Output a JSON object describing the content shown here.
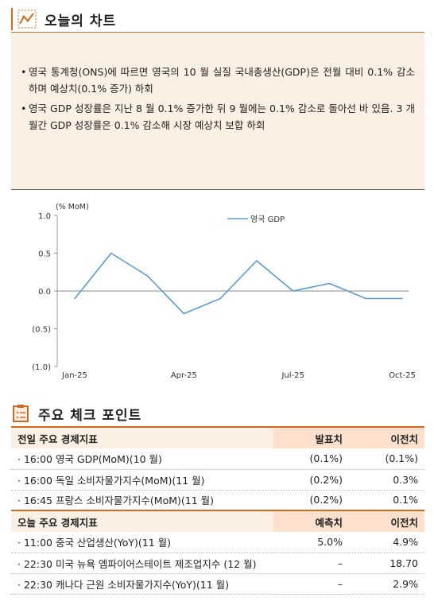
{
  "section1": {
    "title": "오늘의 차트",
    "bullets": [
      "영국 통계청(ONS)에 따르면 영국의 10 월 실질 국내총생산(GDP)은 전월 대비 0.1% 감소하며 예상치(0.1% 증가) 하회",
      "영국 GDP 성장률은 지난 8 월 0.1% 증가한 뒤 9 월에는 0.1% 감소로 돌아선 바 있음. 3 개월간 GDP 성장률은 0.1% 감소해 시장 예상치 보합 하회"
    ]
  },
  "chart_data": {
    "type": "line",
    "title": "",
    "unit_label": "(% MoM)",
    "xlabel": "",
    "ylabel": "",
    "ylim": [
      -1.0,
      1.0
    ],
    "yticks": [
      1.0,
      0.5,
      0.0,
      -0.5,
      -1.0
    ],
    "ytick_labels": [
      "1.0",
      "0.5",
      "0.0",
      "(0.5)",
      "(1.0)"
    ],
    "x": [
      "Jan-25",
      "Feb-25",
      "Mar-25",
      "Apr-25",
      "May-25",
      "Jun-25",
      "Jul-25",
      "Aug-25",
      "Sep-25",
      "Oct-25"
    ],
    "xtick_labels": [
      "Jan-25",
      "Apr-25",
      "Jul-25",
      "Oct-25"
    ],
    "series": [
      {
        "name": "영국 GDP",
        "color": "#5b9bd5",
        "values": [
          -0.1,
          0.5,
          0.2,
          -0.3,
          -0.1,
          0.4,
          0.0,
          0.1,
          -0.1,
          -0.1
        ]
      }
    ],
    "legend": "top-center",
    "grid": false
  },
  "section2": {
    "title": "주요 체크 포인트",
    "prev_header": {
      "label": "전일 주요 경제지표",
      "col1": "발표치",
      "col2": "이전치"
    },
    "prev_rows": [
      {
        "label": "· 16:00  영국 GDP(MoM)(10 월)",
        "v1": "(0.1%)",
        "v2": "(0.1%)"
      },
      {
        "label": "· 16:00  독일 소비자물가지수(MoM)(11 월)",
        "v1": "(0.2%)",
        "v2": "0.3%"
      },
      {
        "label": "· 16:45  프랑스 소비자물가지수(MoM)(11 월)",
        "v1": "(0.2%)",
        "v2": "0.1%"
      }
    ],
    "today_header": {
      "label": "오늘 주요 경제지표",
      "col1": "예측치",
      "col2": "이전치"
    },
    "today_rows": [
      {
        "label": "· 11:00  중국 산업생산(YoY)(11 월)",
        "v1": "5.0%",
        "v2": "4.9%"
      },
      {
        "label": "· 22:30  미국 뉴욕 엠파이어스테이트 제조업지수 (12 월)",
        "v1": "–",
        "v2": "18.70"
      },
      {
        "label": "· 22:30  캐나다 근원 소비자물가지수(YoY)(11 월)",
        "v1": "–",
        "v2": "2.9%"
      }
    ]
  }
}
